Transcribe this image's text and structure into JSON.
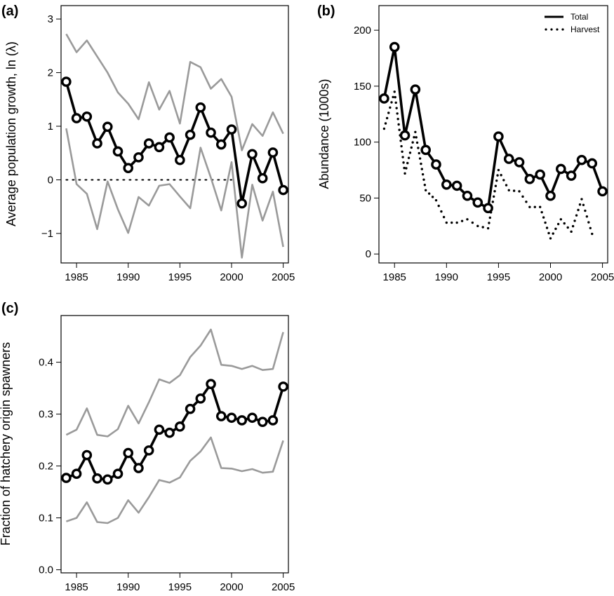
{
  "chart_data": [
    {
      "panel_label": "(a)",
      "type": "line",
      "ylabel": "Average population growth, ln (λ)",
      "xlim": [
        1983.5,
        2005.5
      ],
      "ylim": [
        -1.55,
        3.25
      ],
      "x_ticks": [
        1985,
        1990,
        1995,
        2000,
        2005
      ],
      "y_ticks": [
        -1,
        0,
        1,
        2,
        3
      ],
      "y_tick_labels": [
        "−1",
        "0",
        "1",
        "2",
        "3"
      ],
      "reference_line": 0,
      "x": [
        1984,
        1985,
        1986,
        1987,
        1988,
        1989,
        1990,
        1991,
        1992,
        1993,
        1994,
        1995,
        1996,
        1997,
        1998,
        1999,
        2000,
        2001,
        2002,
        2003,
        2004,
        2005
      ],
      "series": [
        {
          "role": "mean",
          "values": [
            1.83,
            1.15,
            1.18,
            0.68,
            0.99,
            0.53,
            0.22,
            0.42,
            0.68,
            0.61,
            0.79,
            0.37,
            0.84,
            1.35,
            0.88,
            0.66,
            0.94,
            -0.44,
            0.48,
            0.03,
            0.51,
            -0.19
          ]
        },
        {
          "role": "upper",
          "values": [
            2.72,
            2.38,
            2.6,
            2.3,
            2.0,
            1.63,
            1.42,
            1.13,
            1.82,
            1.31,
            1.66,
            1.05,
            2.2,
            2.1,
            1.7,
            1.88,
            1.55,
            0.55,
            1.04,
            0.82,
            1.26,
            0.86
          ]
        },
        {
          "role": "lower",
          "values": [
            0.96,
            -0.08,
            -0.26,
            -0.92,
            -0.03,
            -0.55,
            -0.99,
            -0.32,
            -0.48,
            -0.11,
            -0.08,
            -0.31,
            -0.53,
            0.6,
            0.04,
            -0.57,
            0.33,
            -1.45,
            -0.09,
            -0.76,
            -0.22,
            -1.25
          ]
        }
      ]
    },
    {
      "panel_label": "(b)",
      "type": "line",
      "ylabel": "Abundance (1000s)",
      "xlim": [
        1983.5,
        2005.5
      ],
      "ylim": [
        -8,
        222
      ],
      "x_ticks": [
        1985,
        1990,
        1995,
        2000,
        2005
      ],
      "y_ticks": [
        0,
        50,
        100,
        150,
        200
      ],
      "legend": {
        "placement": "top-right",
        "entries": [
          "Total",
          "Harvest"
        ]
      },
      "x": [
        1984,
        1985,
        1986,
        1987,
        1988,
        1989,
        1990,
        1991,
        1992,
        1993,
        1994,
        1995,
        1996,
        1997,
        1998,
        1999,
        2000,
        2001,
        2002,
        2003,
        2004,
        2005
      ],
      "series": [
        {
          "name": "Total",
          "values": [
            139,
            185,
            106,
            147,
            93,
            80,
            62,
            61,
            52,
            46,
            41,
            105,
            85,
            82,
            67,
            71,
            52,
            76,
            70,
            84,
            81,
            56
          ]
        },
        {
          "name": "Harvest",
          "values": [
            112,
            145,
            72,
            109,
            57,
            48,
            28,
            28,
            31,
            25,
            23,
            75,
            57,
            56,
            42,
            42,
            14,
            31,
            20,
            49,
            18,
            null
          ]
        }
      ]
    },
    {
      "panel_label": "(c)",
      "type": "line",
      "ylabel": "Fraction of hatchery origin spawners",
      "xlim": [
        1983.5,
        2005.5
      ],
      "ylim": [
        -0.006,
        0.49
      ],
      "x_ticks": [
        1985,
        1990,
        1995,
        2000,
        2005
      ],
      "y_ticks": [
        0.0,
        0.1,
        0.2,
        0.3,
        0.4
      ],
      "y_tick_labels": [
        "0.0",
        "0.1",
        "0.2",
        "0.3",
        "0.4"
      ],
      "x": [
        1984,
        1985,
        1986,
        1987,
        1988,
        1989,
        1990,
        1991,
        1992,
        1993,
        1994,
        1995,
        1996,
        1997,
        1998,
        1999,
        2000,
        2001,
        2002,
        2003,
        2004,
        2005
      ],
      "series": [
        {
          "role": "mean",
          "values": [
            0.177,
            0.185,
            0.221,
            0.176,
            0.174,
            0.185,
            0.225,
            0.196,
            0.23,
            0.27,
            0.264,
            0.276,
            0.31,
            0.33,
            0.358,
            0.296,
            0.293,
            0.288,
            0.293,
            0.285,
            0.288,
            0.353
          ]
        },
        {
          "role": "upper",
          "values": [
            0.26,
            0.27,
            0.311,
            0.26,
            0.257,
            0.271,
            0.316,
            0.282,
            0.323,
            0.367,
            0.36,
            0.375,
            0.41,
            0.432,
            0.463,
            0.395,
            0.393,
            0.387,
            0.393,
            0.385,
            0.387,
            0.458
          ]
        },
        {
          "role": "lower",
          "values": [
            0.093,
            0.1,
            0.13,
            0.092,
            0.09,
            0.1,
            0.134,
            0.11,
            0.14,
            0.173,
            0.168,
            0.178,
            0.21,
            0.228,
            0.255,
            0.196,
            0.195,
            0.19,
            0.194,
            0.187,
            0.189,
            0.249
          ]
        }
      ]
    }
  ]
}
